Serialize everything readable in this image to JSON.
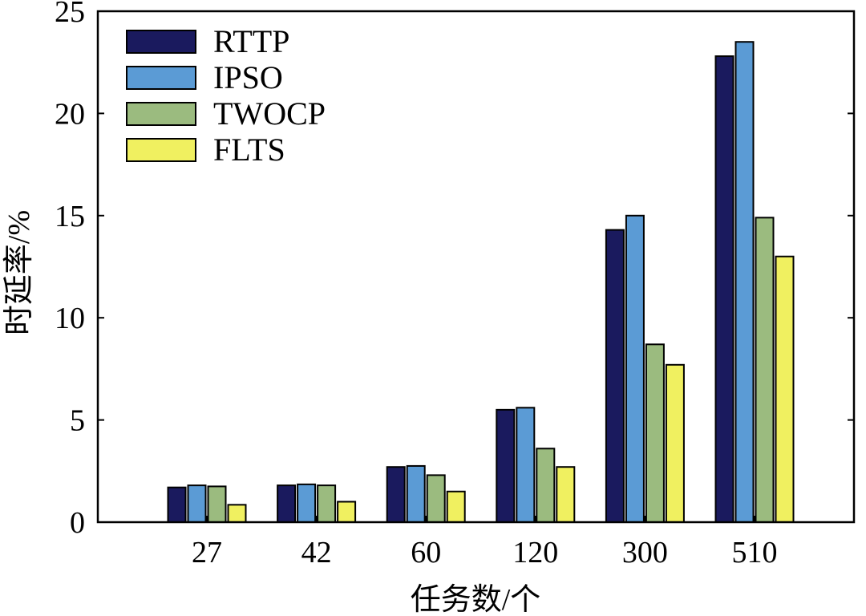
{
  "chart_data": {
    "type": "bar",
    "categories": [
      "27",
      "42",
      "60",
      "120",
      "300",
      "510"
    ],
    "series": [
      {
        "name": "RTTP",
        "color": "#1a1a5e",
        "values": [
          1.7,
          1.8,
          2.7,
          5.5,
          14.3,
          22.8
        ]
      },
      {
        "name": "IPSO",
        "color": "#5b9bd5",
        "values": [
          1.8,
          1.85,
          2.75,
          5.6,
          15.0,
          23.5
        ]
      },
      {
        "name": "TWOCP",
        "color": "#9bbb7f",
        "values": [
          1.75,
          1.8,
          2.3,
          3.6,
          8.7,
          14.9
        ]
      },
      {
        "name": "FLTS",
        "color": "#f0f060",
        "values": [
          0.85,
          1.0,
          1.5,
          2.7,
          7.7,
          13.0
        ]
      }
    ],
    "xlabel": "任务数/个",
    "ylabel": "时延率/%",
    "ylim": [
      0,
      25
    ],
    "yticks": [
      0,
      5,
      10,
      15,
      20,
      25
    ],
    "grid": false,
    "legend_position": "top-left"
  }
}
